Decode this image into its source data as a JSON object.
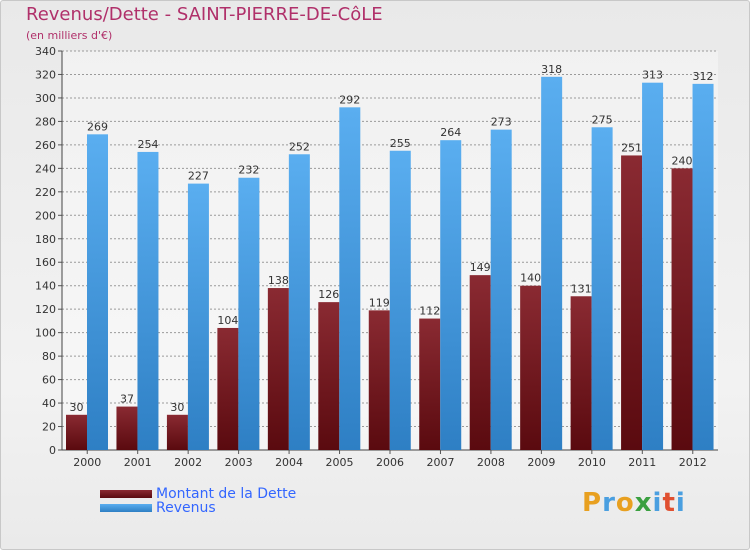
{
  "chart_data": {
    "type": "bar",
    "title": "Revenus/Dette - SAINT-PIERRE-DE-CôLE",
    "subtitle": "(en milliers d'€)",
    "categories": [
      "2000",
      "2001",
      "2002",
      "2003",
      "2004",
      "2005",
      "2006",
      "2007",
      "2008",
      "2009",
      "2010",
      "2011",
      "2012"
    ],
    "series": [
      {
        "name": "Montant de la Dette",
        "color": "#7a1a1f",
        "values": [
          30,
          37,
          30,
          104,
          138,
          126,
          119,
          112,
          149,
          140,
          131,
          251,
          240
        ]
      },
      {
        "name": "Revenus",
        "color": "#4a9fe0",
        "values": [
          269,
          254,
          227,
          232,
          252,
          292,
          255,
          264,
          273,
          318,
          275,
          313,
          312
        ]
      }
    ],
    "ylim": [
      0,
      340
    ],
    "yticks": [
      0,
      20,
      40,
      60,
      80,
      100,
      120,
      140,
      160,
      180,
      200,
      220,
      240,
      260,
      280,
      300,
      320,
      340
    ],
    "grid": true,
    "legend": "bottom-left"
  },
  "logo": {
    "letters": [
      "P",
      "r",
      "o",
      "x",
      "i",
      "t",
      "i"
    ],
    "colors": [
      "#e8a020",
      "#4a9fe0",
      "#e8a020",
      "#3aa040",
      "#4a9fe0",
      "#e05030",
      "#4a9fe0"
    ]
  }
}
